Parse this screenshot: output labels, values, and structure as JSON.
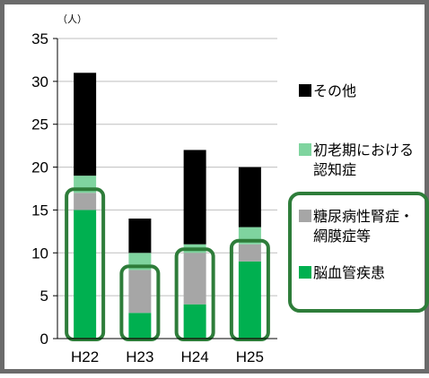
{
  "chart_data": {
    "type": "bar",
    "stacked": true,
    "unit_label": "（人）",
    "categories": [
      "H22",
      "H23",
      "H24",
      "H25"
    ],
    "ylim": [
      0,
      35
    ],
    "yticks": [
      0,
      5,
      10,
      15,
      20,
      25,
      30,
      35
    ],
    "grid": true,
    "legend_position": "right",
    "series": [
      {
        "name": "脳血管疾患",
        "color": "#00b050",
        "values": [
          15,
          3,
          4,
          9
        ]
      },
      {
        "name": "糖尿病性腎症・網膜症等",
        "color": "#a6a6a6",
        "values": [
          2,
          5,
          6,
          2
        ]
      },
      {
        "name": "初老期における認知症",
        "color": "#7fd49f",
        "values": [
          2,
          2,
          1,
          2
        ]
      },
      {
        "name": "その他",
        "color": "#000000",
        "values": [
          12,
          4,
          11,
          7
        ]
      }
    ],
    "legend": [
      {
        "series": 3,
        "lines": [
          "その他"
        ]
      },
      {
        "series": 2,
        "lines": [
          "初老期における",
          "認知症"
        ]
      },
      {
        "series": 1,
        "lines": [
          "糖尿病性腎症・",
          "網膜症等"
        ]
      },
      {
        "series": 0,
        "lines": [
          "脳血管疾患"
        ]
      }
    ],
    "highlight_color": "#2e7d3a"
  }
}
